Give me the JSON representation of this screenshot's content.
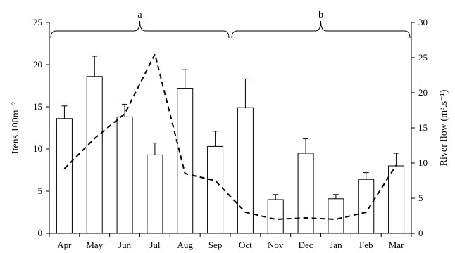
{
  "chart_data": {
    "type": "bar",
    "categories": [
      "Apr",
      "May",
      "Jun",
      "Jul",
      "Aug",
      "Sep",
      "Oct",
      "Nov",
      "Dec",
      "Jan",
      "Feb",
      "Mar"
    ],
    "series": [
      {
        "type": "bar",
        "axis": "left",
        "values": [
          13.6,
          18.6,
          13.8,
          9.3,
          17.2,
          10.3,
          14.9,
          4.0,
          9.5,
          4.1,
          6.4,
          8.0
        ],
        "error": [
          1.5,
          2.4,
          1.5,
          1.4,
          2.2,
          1.8,
          3.4,
          0.6,
          1.7,
          0.5,
          0.8,
          1.5
        ]
      },
      {
        "type": "line",
        "style": "dashed",
        "axis": "right",
        "values": [
          9.2,
          13.5,
          17.0,
          25.5,
          8.5,
          7.5,
          3.0,
          2.0,
          2.2,
          2.0,
          3.0,
          9.7
        ]
      }
    ],
    "ylabel": "Itens.100m⁻²",
    "y2label": "River flow (m³.s⁻¹)",
    "ylim": [
      0,
      25
    ],
    "y2lim": [
      0,
      30
    ],
    "yticks": [
      0,
      5,
      10,
      15,
      20,
      25
    ],
    "y2ticks": [
      0,
      5,
      10,
      15,
      20,
      25,
      30
    ],
    "groups": [
      {
        "label": "a",
        "from": "Apr",
        "to": "Sep"
      },
      {
        "label": "b",
        "from": "Oct",
        "to": "Mar"
      }
    ],
    "grid": false,
    "colors": {
      "bar_fill": "#ffffff",
      "stroke": "#000000"
    }
  }
}
